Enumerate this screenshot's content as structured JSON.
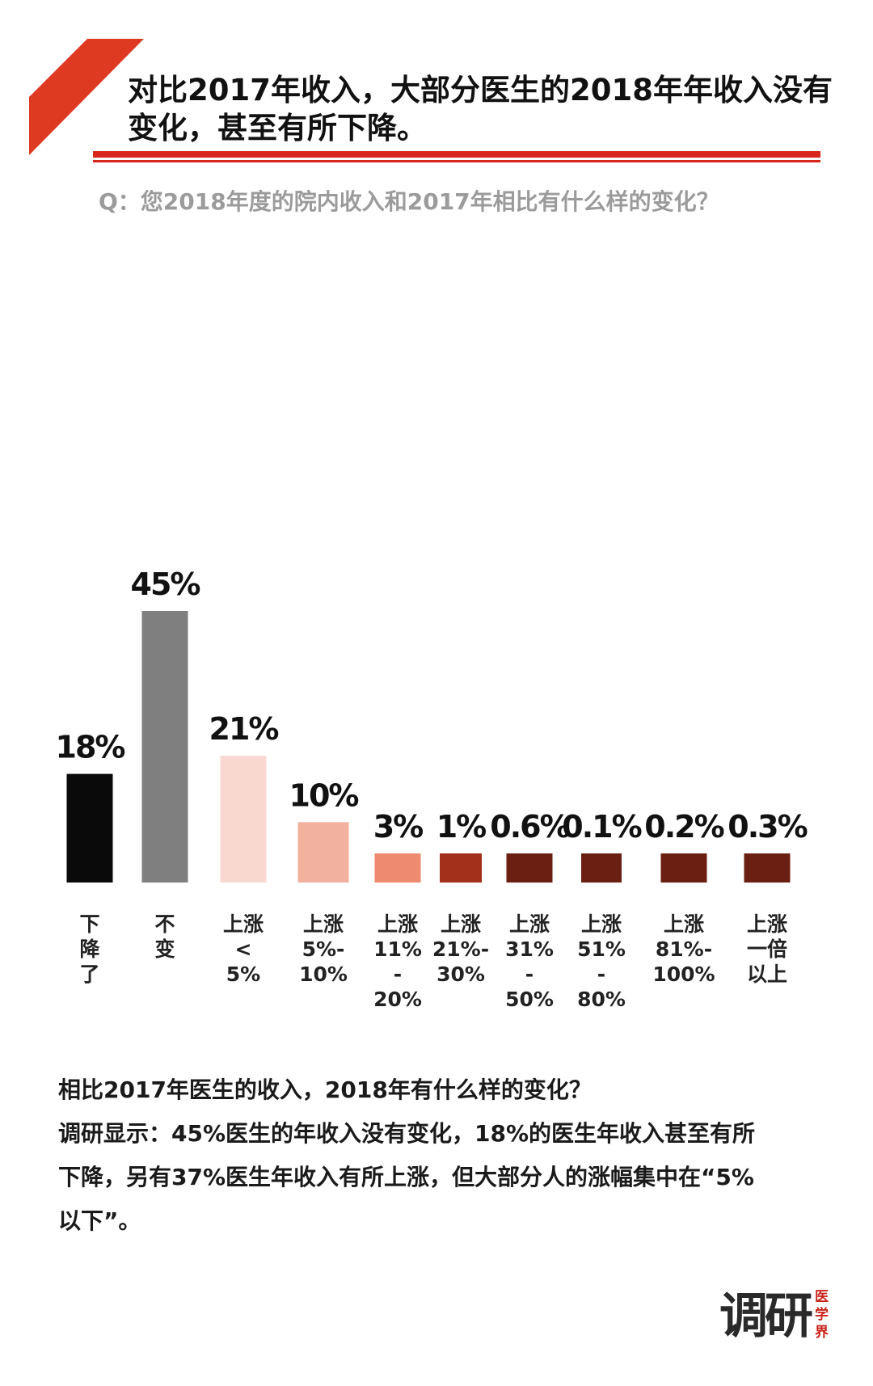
{
  "header": {
    "title": "对比2017年收入，大部分医生的2018年年收入没有变化，甚至有所下降。",
    "question": "Q：您2018年度的院内收入和2017年相比有什么样的变化？"
  },
  "chart_data": {
    "type": "bar",
    "categories": [
      "下降了",
      "不变",
      "上涨<5%",
      "上涨5%-10%",
      "上涨11%-20%",
      "上涨21%-30%",
      "上涨31%-50%",
      "上涨51%-80%",
      "上涨81%-100%",
      "上涨一倍以上"
    ],
    "category_lines": [
      [
        "下",
        "降",
        "了"
      ],
      [
        "不",
        "变"
      ],
      [
        "上涨",
        "<",
        "5%"
      ],
      [
        "上涨",
        "5%-",
        "10%"
      ],
      [
        "上涨",
        "11%",
        "-",
        "20%"
      ],
      [
        "上涨",
        "21%-",
        "30%"
      ],
      [
        "上涨",
        "31%",
        "-",
        "50%"
      ],
      [
        "上涨",
        "51%",
        "-",
        "80%"
      ],
      [
        "上涨",
        "81%-",
        "100%"
      ],
      [
        "上涨",
        "一倍",
        "以上"
      ]
    ],
    "values": [
      18,
      45,
      21,
      10,
      3,
      1,
      0.6,
      0.1,
      0.2,
      0.3
    ],
    "labels": [
      "18%",
      "45%",
      "21%",
      "10%",
      "3%",
      "1%",
      "0.6%",
      "0.1%",
      "0.2%",
      "0.3%"
    ],
    "colors": [
      "#0a0a0a",
      "#7f7f7f",
      "#f9d8d0",
      "#f2b09e",
      "#ed8a6f",
      "#a3301a",
      "#6b1f12",
      "#6b1f12",
      "#6b1f12",
      "#6b1f12"
    ],
    "ylim": [
      0,
      45
    ],
    "grid": false
  },
  "summary": {
    "question": "相比2017年医生的收入，2018年有什么样的变化？",
    "lines": [
      "调研显示：45%医生的年收入没有变化，18%的医生年收入甚至有所",
      "下降，另有37%医生年收入有所上涨，但大部分人的涨幅集中在“5%",
      "以下”。"
    ]
  },
  "logo": {
    "main": "调研",
    "side": "医学界"
  }
}
